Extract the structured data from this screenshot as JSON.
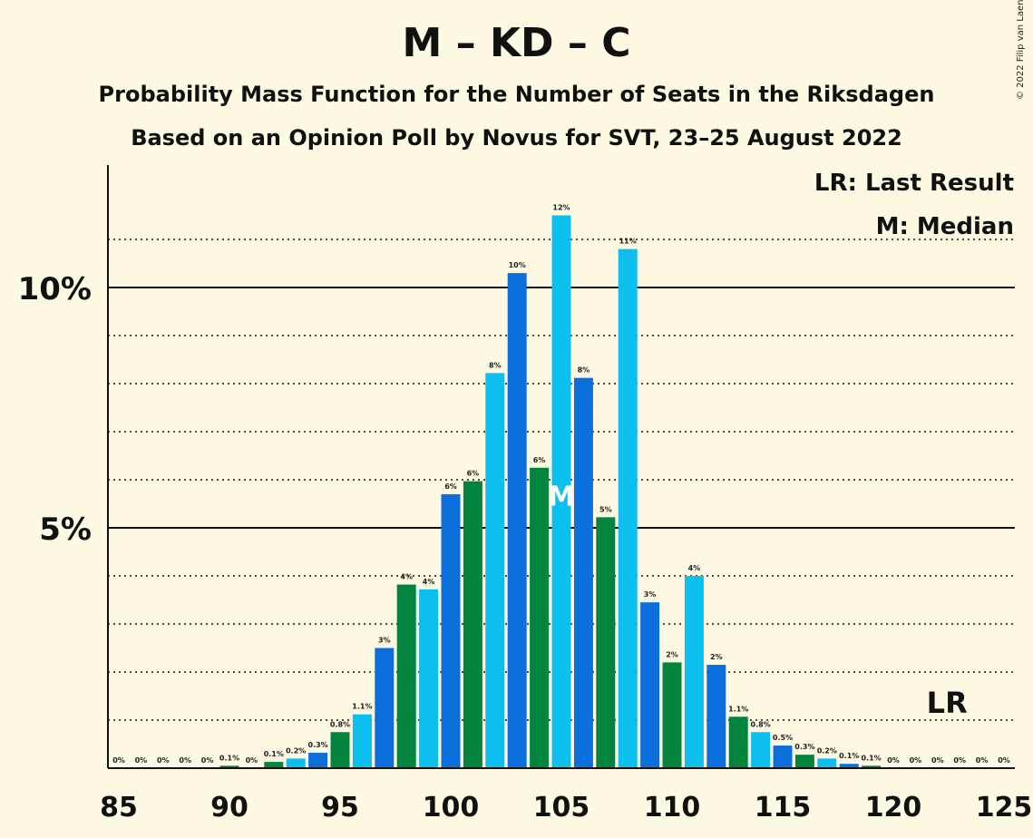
{
  "title": "M – KD – C",
  "subtitle1": "Probability Mass Function for the Number of Seats in the Riksdagen",
  "subtitle2": "Based on an Opinion Poll by Novus for SVT, 23–25 August 2022",
  "copyright": "© 2022 Filip van Laenen",
  "legend": {
    "last_result": "LR: Last Result",
    "median": "M: Median"
  },
  "markers": {
    "last_result_label": "LR",
    "last_result_seat": 123,
    "median_label": "M",
    "median_seat": 105
  },
  "colors": {
    "blue_dark": "#0b6fdb",
    "blue_light": "#0dbfee",
    "green": "#02843f",
    "background": "#fef9e3"
  },
  "chart_data": {
    "type": "bar",
    "x": [
      85,
      86,
      87,
      88,
      89,
      90,
      91,
      92,
      93,
      94,
      95,
      96,
      97,
      98,
      99,
      100,
      101,
      102,
      103,
      104,
      105,
      106,
      107,
      108,
      109,
      110,
      111,
      112,
      113,
      114,
      115,
      116,
      117,
      118,
      119,
      120,
      121,
      122,
      123,
      124,
      125
    ],
    "values": [
      0,
      0,
      0,
      0,
      0,
      0.05,
      0,
      0.13,
      0.2,
      0.32,
      0.75,
      1.12,
      2.5,
      3.82,
      3.72,
      5.7,
      5.97,
      8.22,
      10.3,
      6.25,
      11.5,
      8.12,
      5.22,
      10.8,
      3.45,
      2.2,
      4.0,
      2.15,
      1.07,
      0.75,
      0.47,
      0.28,
      0.2,
      0.09,
      0.05,
      0,
      0,
      0,
      0,
      0,
      0
    ],
    "labels": [
      "0%",
      "0%",
      "0%",
      "0%",
      "0%",
      "0.1%",
      "0%",
      "0.1%",
      "0.2%",
      "0.3%",
      "0.8%",
      "1.1%",
      "3%",
      "4%",
      "4%",
      "6%",
      "6%",
      "8%",
      "10%",
      "6%",
      "12%",
      "8%",
      "5%",
      "11%",
      "3%",
      "2%",
      "4%",
      "2%",
      "1.1%",
      "0.8%",
      "0.5%",
      "0.3%",
      "0.2%",
      "0.1%",
      "0.1%",
      "0%",
      "0%",
      "0%",
      "0%",
      "0%",
      "0%"
    ],
    "bar_colors": [
      "blue_light",
      "blue_dark",
      "green",
      "blue_light",
      "blue_dark",
      "green",
      "blue_light",
      "green",
      "blue_light",
      "blue_dark",
      "green",
      "blue_light",
      "blue_dark",
      "green",
      "blue_light",
      "blue_dark",
      "green",
      "blue_light",
      "blue_dark",
      "green",
      "blue_light",
      "blue_dark",
      "green",
      "blue_light",
      "blue_dark",
      "green",
      "blue_light",
      "blue_dark",
      "green",
      "blue_light",
      "blue_dark",
      "green",
      "blue_light",
      "blue_dark",
      "green",
      "blue_light",
      "blue_dark",
      "green",
      "blue_light",
      "blue_dark",
      "green"
    ],
    "x_ticks": [
      85,
      90,
      95,
      100,
      105,
      110,
      115,
      120,
      125
    ],
    "x_tick_labels": [
      "85",
      "90",
      "95",
      "100",
      "105",
      "110",
      "115",
      "120",
      "125"
    ],
    "y_major_ticks": [
      5,
      10
    ],
    "y_major_labels": [
      "5%",
      "10%"
    ],
    "y_minor_ticks": [
      1,
      2,
      3,
      4,
      6,
      7,
      8,
      9,
      11
    ],
    "ylim": [
      0,
      12.5
    ],
    "xlabel": "",
    "ylabel": ""
  }
}
